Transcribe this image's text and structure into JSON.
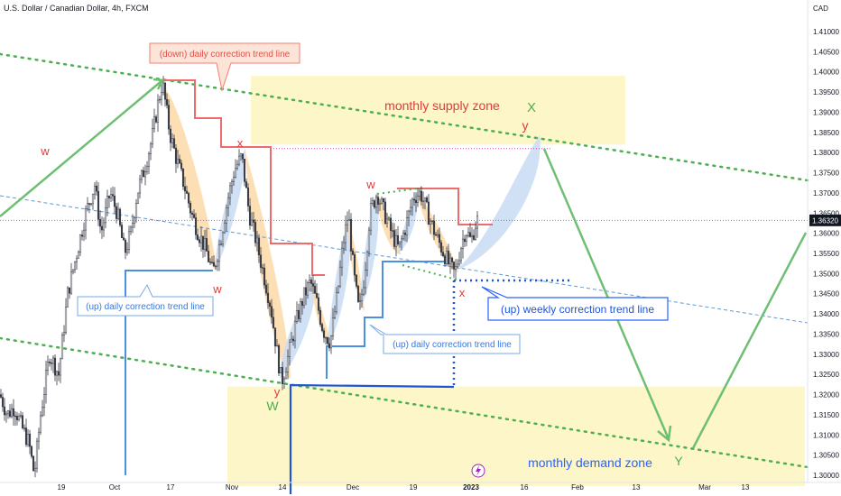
{
  "header": {
    "symbol_title": "U.S. Dollar / Canadian Dollar, 4h, FXCM",
    "currency": "CAD"
  },
  "price_axis": {
    "ticks": [
      "1.41000",
      "1.40500",
      "1.40000",
      "1.39500",
      "1.39000",
      "1.38500",
      "1.38000",
      "1.37500",
      "1.37000",
      "1.36500",
      "1.36000",
      "1.35500",
      "1.35000",
      "1.34500",
      "1.34000",
      "1.33500",
      "1.33000",
      "1.32500",
      "1.32000",
      "1.31500",
      "1.31000",
      "1.30500",
      "1.30000"
    ],
    "current_price": "1.36320",
    "colors": {
      "current_badge": "#131722",
      "axis_text": "#131722"
    }
  },
  "time_axis": {
    "ticks": [
      "19",
      "Oct",
      "17",
      "Nov",
      "14",
      "Dec",
      "19",
      "2023",
      "16",
      "Feb",
      "13",
      "Mar",
      "13"
    ]
  },
  "zones": {
    "supply_label": "monthly supply zone",
    "demand_label": "monthly demand zone",
    "fill": "#fdf6c8"
  },
  "callouts": {
    "down_daily": "(down) daily correction trend line",
    "up_daily_left": "(up) daily correction trend line",
    "up_daily_mid": "(up) daily correction trend line",
    "up_weekly": "(up) weekly correction trend line"
  },
  "wave_labels": {
    "w_left": "w",
    "x_top": "x",
    "w_mid": "w",
    "y_low": "y",
    "W_low": "W",
    "w_dec": "w",
    "x_dec": "x",
    "y_top": "y",
    "X_top": "X",
    "Y_target": "Y"
  },
  "chart_data": {
    "type": "candlestick",
    "symbol": "U.S. Dollar / Canadian Dollar",
    "timeframe": "4h",
    "source": "FXCM",
    "y_unit": "CAD",
    "ylim": [
      1.298,
      1.415
    ],
    "x_ticks": [
      "19",
      "Oct",
      "17",
      "Nov",
      "14",
      "Dec",
      "19",
      "2023",
      "16",
      "Feb",
      "13",
      "Mar",
      "13"
    ],
    "last_price": 1.3632,
    "price_path": [
      [
        0,
        1.32
      ],
      [
        8,
        1.315
      ],
      [
        16,
        1.317
      ],
      [
        24,
        1.312
      ],
      [
        32,
        1.308
      ],
      [
        38,
        1.3
      ],
      [
        45,
        1.315
      ],
      [
        55,
        1.33
      ],
      [
        65,
        1.325
      ],
      [
        75,
        1.345
      ],
      [
        85,
        1.355
      ],
      [
        95,
        1.365
      ],
      [
        105,
        1.372
      ],
      [
        112,
        1.36
      ],
      [
        122,
        1.37
      ],
      [
        130,
        1.365
      ],
      [
        138,
        1.355
      ],
      [
        145,
        1.36
      ],
      [
        152,
        1.37
      ],
      [
        160,
        1.376
      ],
      [
        168,
        1.383
      ],
      [
        175,
        1.392
      ],
      [
        180,
        1.3975
      ],
      [
        188,
        1.385
      ],
      [
        196,
        1.378
      ],
      [
        204,
        1.372
      ],
      [
        212,
        1.365
      ],
      [
        220,
        1.36
      ],
      [
        228,
        1.356
      ],
      [
        236,
        1.35
      ],
      [
        244,
        1.358
      ],
      [
        252,
        1.368
      ],
      [
        260,
        1.376
      ],
      [
        268,
        1.379
      ],
      [
        276,
        1.365
      ],
      [
        284,
        1.358
      ],
      [
        292,
        1.35
      ],
      [
        300,
        1.342
      ],
      [
        306,
        1.332
      ],
      [
        312,
        1.323
      ],
      [
        320,
        1.33
      ],
      [
        328,
        1.338
      ],
      [
        336,
        1.344
      ],
      [
        344,
        1.348
      ],
      [
        352,
        1.342
      ],
      [
        358,
        1.336
      ],
      [
        366,
        1.333
      ],
      [
        374,
        1.345
      ],
      [
        380,
        1.357
      ],
      [
        386,
        1.365
      ],
      [
        392,
        1.35
      ],
      [
        398,
        1.34
      ],
      [
        404,
        1.35
      ],
      [
        410,
        1.365
      ],
      [
        418,
        1.37
      ],
      [
        426,
        1.365
      ],
      [
        434,
        1.36
      ],
      [
        442,
        1.356
      ],
      [
        450,
        1.362
      ],
      [
        458,
        1.369
      ],
      [
        466,
        1.37
      ],
      [
        474,
        1.365
      ],
      [
        482,
        1.36
      ],
      [
        490,
        1.356
      ],
      [
        498,
        1.352
      ],
      [
        504,
        1.35
      ],
      [
        510,
        1.356
      ],
      [
        516,
        1.361
      ],
      [
        522,
        1.358
      ],
      [
        528,
        1.3632
      ]
    ],
    "levels": {
      "supply_zone": [
        1.382,
        1.399
      ],
      "demand_zone": [
        1.298,
        1.322
      ],
      "dotted_red_level": 1.381,
      "dotted_blue_level": 1.3483
    }
  }
}
